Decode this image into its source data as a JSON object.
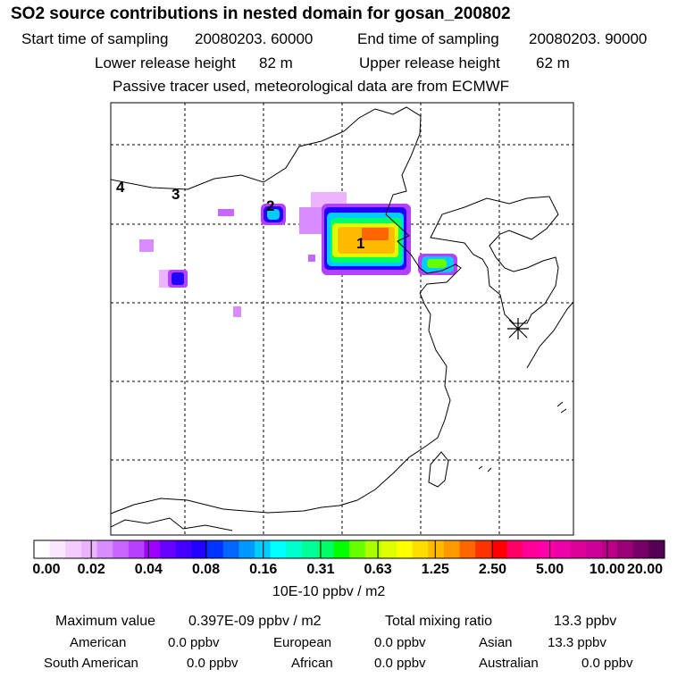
{
  "title": "SO2 source contributions in nested domain for gosan_200802",
  "sampling": {
    "start_label": "Start time of sampling",
    "start_value": "20080203. 60000",
    "end_label": "End time of sampling",
    "end_value": "20080203. 90000"
  },
  "release": {
    "lower_label": "Lower release height",
    "lower_value": "82 m",
    "upper_label": "Upper release height",
    "upper_value": "62 m"
  },
  "note": "Passive tracer used, meteorological data are from ECMWF",
  "map": {
    "source_labels": [
      "1",
      "2",
      "3",
      "4"
    ],
    "receptor_marker": "asterisk-icon"
  },
  "colorbar": {
    "colors": [
      "#ffffff",
      "#fbe6ff",
      "#f4ccff",
      "#ecb3ff",
      "#d98cff",
      "#c966ff",
      "#b540ff",
      "#9d00ff",
      "#6600ff",
      "#4400ff",
      "#2000ff",
      "#0033ff",
      "#0066ff",
      "#0099ff",
      "#00ccff",
      "#00ffff",
      "#00ffcc",
      "#00ff99",
      "#00ff66",
      "#00ff00",
      "#66ff00",
      "#aaff00",
      "#ddff00",
      "#ffff00",
      "#ffdd00",
      "#ffbb00",
      "#ff9900",
      "#ff6600",
      "#ff3300",
      "#ff0000",
      "#ff0066",
      "#ff0099",
      "#ff00aa",
      "#ee00aa",
      "#dd0099",
      "#cc0099",
      "#bb0088",
      "#990077",
      "#770066",
      "#550055"
    ],
    "ticks": [
      "0.00",
      "0.02",
      "0.04",
      "0.08",
      "0.16",
      "0.31",
      "0.63",
      "1.25",
      "2.50",
      "5.00",
      "10.00",
      "20.00"
    ],
    "unit": "10E-10 ppbv / m2"
  },
  "summary": {
    "max_label": "Maximum value",
    "max_value": "0.397E-09 ppbv / m2",
    "total_label": "Total mixing ratio",
    "total_value": "13.3 ppbv"
  },
  "regions": [
    {
      "name": "American",
      "value": "0.0 ppbv"
    },
    {
      "name": "European",
      "value": "0.0 ppbv"
    },
    {
      "name": "Asian",
      "value": "13.3 ppbv"
    },
    {
      "name": "South American",
      "value": "0.0 ppbv"
    },
    {
      "name": "African",
      "value": "0.0 ppbv"
    },
    {
      "name": "Australian",
      "value": "0.0 ppbv"
    }
  ]
}
